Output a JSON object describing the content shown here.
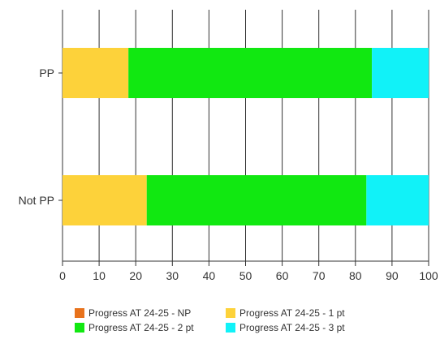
{
  "chart_data": {
    "type": "bar",
    "orientation": "horizontal",
    "stacked": true,
    "categories": [
      "PP",
      "Not PP"
    ],
    "series": [
      {
        "name": "Progress AT 24-25 - NP",
        "color": "#e8721c",
        "values": [
          0,
          0
        ]
      },
      {
        "name": "Progress AT 24-25 - 1 pt",
        "color": "#fdd23a",
        "values": [
          18,
          23
        ]
      },
      {
        "name": "Progress AT 24-25 - 2 pt",
        "color": "#11e811",
        "values": [
          66.5,
          60
        ]
      },
      {
        "name": "Progress AT 24-25 - 3 pt",
        "color": "#11f2f8",
        "values": [
          15.5,
          17
        ]
      }
    ],
    "xlim": [
      0,
      100
    ],
    "xticks": [
      "0",
      "10",
      "20",
      "30",
      "40",
      "50",
      "60",
      "70",
      "80",
      "90",
      "100"
    ],
    "grid": true,
    "legend_position": "bottom"
  }
}
